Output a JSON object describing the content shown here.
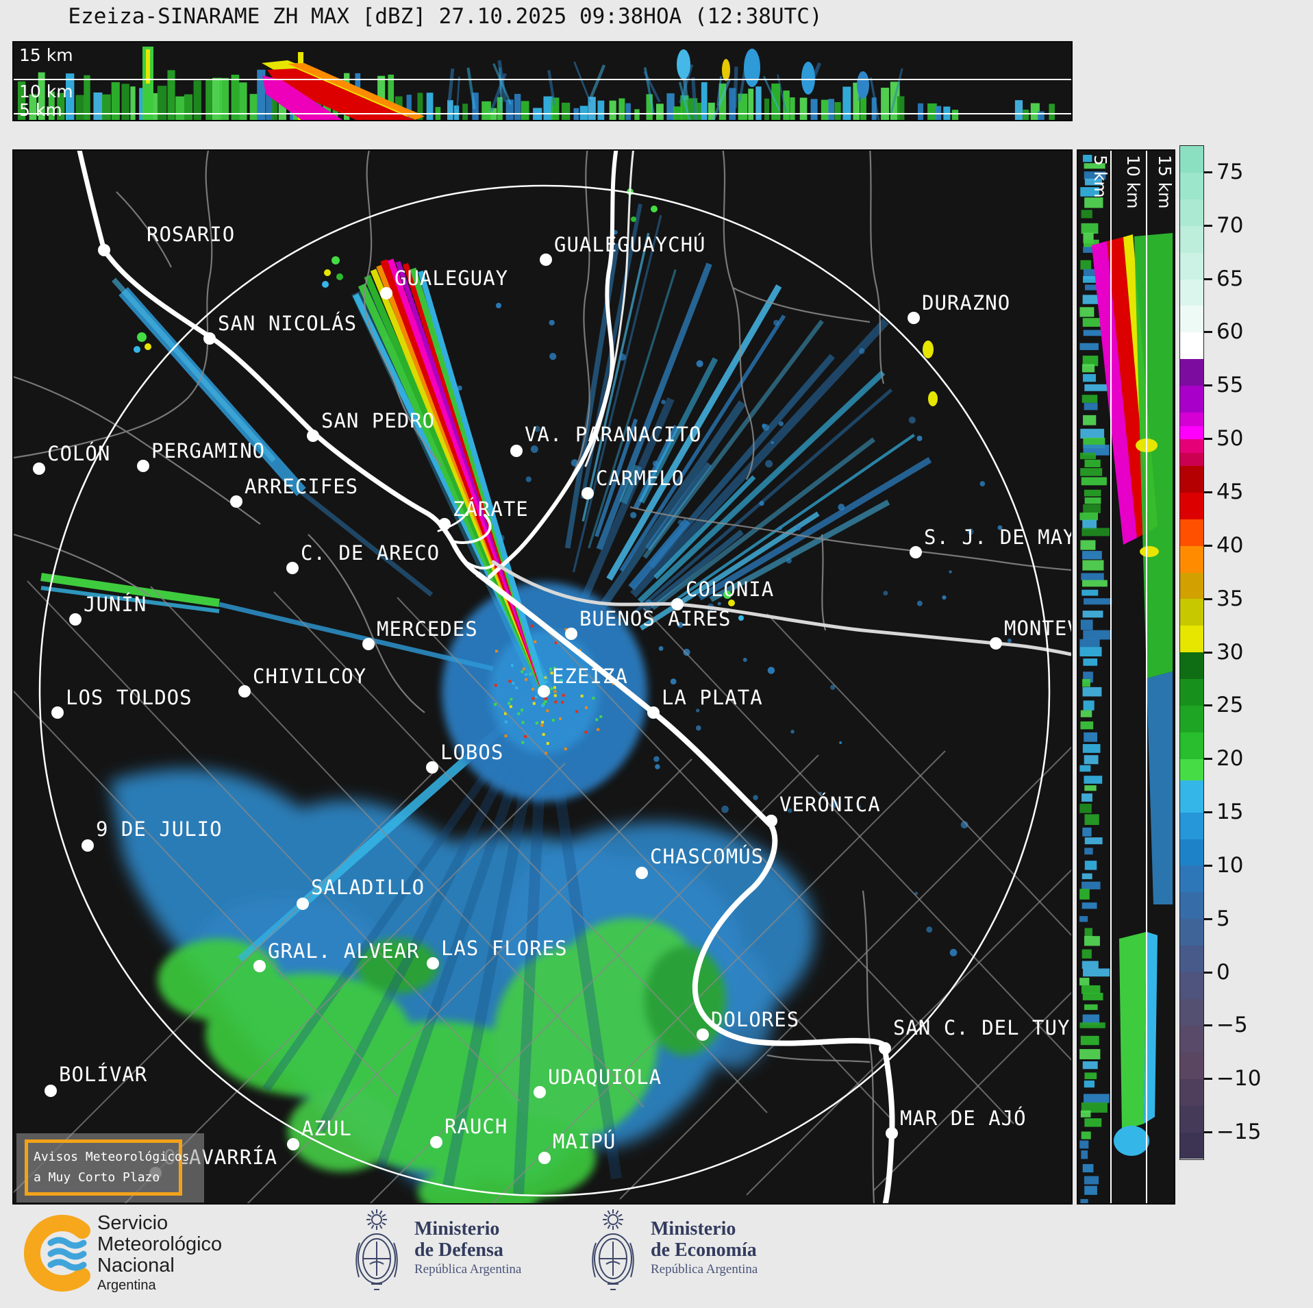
{
  "title": "Ezeiza-SINARAME ZH MAX [dBZ] 27.10.2025 09:38HOA (12:38UTC)",
  "top_panel": {
    "height_labels": [
      "15 km",
      "10 km",
      "5 km"
    ]
  },
  "right_panel": {
    "height_labels": [
      "5 km",
      "10 km",
      "15 km"
    ]
  },
  "colorbar": {
    "unit": "dBZ",
    "top_value": 77.5,
    "bottom_value": -17.5,
    "ticks": [
      75,
      70,
      65,
      60,
      55,
      50,
      45,
      40,
      35,
      30,
      25,
      20,
      15,
      10,
      5,
      0,
      -5,
      -10,
      -15
    ],
    "stops": [
      {
        "v": 77.5,
        "c": "#8ce0c2"
      },
      {
        "v": 75,
        "c": "#9ce6cb"
      },
      {
        "v": 72.5,
        "c": "#ace9d2"
      },
      {
        "v": 70,
        "c": "#bceedb"
      },
      {
        "v": 67.5,
        "c": "#cbf2e4"
      },
      {
        "v": 65,
        "c": "#dbf6ec"
      },
      {
        "v": 62.5,
        "c": "#eefaf5"
      },
      {
        "v": 60,
        "c": "#ffffff"
      },
      {
        "v": 57.5,
        "c": "#7c0ca0"
      },
      {
        "v": 55,
        "c": "#a800c8"
      },
      {
        "v": 52.5,
        "c": "#d400d4"
      },
      {
        "v": 51.2,
        "c": "#ff00ff"
      },
      {
        "v": 50,
        "c": "#e60078"
      },
      {
        "v": 48.7,
        "c": "#cc0050"
      },
      {
        "v": 47.5,
        "c": "#b40000"
      },
      {
        "v": 45,
        "c": "#dc0000"
      },
      {
        "v": 42.5,
        "c": "#ff5000"
      },
      {
        "v": 40,
        "c": "#ff8c00"
      },
      {
        "v": 37.5,
        "c": "#d2a000"
      },
      {
        "v": 35,
        "c": "#c8c800"
      },
      {
        "v": 32.5,
        "c": "#e6e600"
      },
      {
        "v": 30,
        "c": "#0f6e14"
      },
      {
        "v": 27.5,
        "c": "#17911c"
      },
      {
        "v": 25,
        "c": "#1fa524"
      },
      {
        "v": 22.5,
        "c": "#28be2d"
      },
      {
        "v": 20,
        "c": "#46dc46"
      },
      {
        "v": 18,
        "c": "#35b6e8"
      },
      {
        "v": 15,
        "c": "#2697d8"
      },
      {
        "v": 12.5,
        "c": "#1e82c8"
      },
      {
        "v": 10,
        "c": "#2d77b8"
      },
      {
        "v": 7.5,
        "c": "#366ca8"
      },
      {
        "v": 5,
        "c": "#3f6498"
      },
      {
        "v": 2.5,
        "c": "#475a8a"
      },
      {
        "v": 0,
        "c": "#4e547e"
      },
      {
        "v": -2.5,
        "c": "#545072"
      },
      {
        "v": -5,
        "c": "#584a68"
      },
      {
        "v": -7.5,
        "c": "#5a4660"
      },
      {
        "v": -10,
        "c": "#4f3f5c"
      },
      {
        "v": -12.5,
        "c": "#453a58"
      },
      {
        "v": -15,
        "c": "#3c3452",
        "end": -17.5
      }
    ]
  },
  "map": {
    "radar_site": "EZEIZA",
    "cities": [
      {
        "name": "ROSARIO",
        "dot": [
          150,
          363
        ],
        "label": [
          212,
          340
        ]
      },
      {
        "name": "GUALEGUAYCHÚ",
        "dot": [
          795,
          377
        ],
        "label": [
          807,
          355
        ]
      },
      {
        "name": "GUALEGUAY",
        "dot": [
          562,
          426
        ],
        "label": [
          574,
          404
        ]
      },
      {
        "name": "SAN NICOLÁS",
        "dot": [
          304,
          492
        ],
        "label": [
          316,
          470
        ]
      },
      {
        "name": "DURAZNO",
        "dot": [
          1332,
          462
        ],
        "label": [
          1344,
          440
        ]
      },
      {
        "name": "SAN PEDRO",
        "dot": [
          455,
          634
        ],
        "label": [
          467,
          612
        ]
      },
      {
        "name": "VA. PARANACITO",
        "dot": [
          752,
          656
        ],
        "label": [
          764,
          632
        ]
      },
      {
        "name": "COLÓN",
        "dot": [
          55,
          682
        ],
        "label": [
          67,
          660
        ]
      },
      {
        "name": "PERGAMINO",
        "dot": [
          207,
          678
        ],
        "label": [
          219,
          656
        ]
      },
      {
        "name": "ARRECIFES",
        "dot": [
          343,
          730
        ],
        "label": [
          355,
          708
        ]
      },
      {
        "name": "ZÁRATE",
        "dot": [
          647,
          763
        ],
        "label": [
          659,
          741
        ]
      },
      {
        "name": "CARMELO",
        "dot": [
          856,
          718
        ],
        "label": [
          868,
          696
        ]
      },
      {
        "name": "C. DE ARECO",
        "dot": [
          425,
          827
        ],
        "label": [
          437,
          805
        ]
      },
      {
        "name": "COLONIA",
        "dot": [
          987,
          880
        ],
        "label": [
          999,
          858
        ]
      },
      {
        "name": "S. J. DE MAYO",
        "dot": [
          1335,
          804
        ],
        "label": [
          1347,
          782
        ]
      },
      {
        "name": "JUNÍN",
        "dot": [
          108,
          902
        ],
        "label": [
          120,
          880
        ]
      },
      {
        "name": "MERCEDES",
        "dot": [
          536,
          938
        ],
        "label": [
          548,
          916
        ]
      },
      {
        "name": "BUENOS AIRES",
        "dot": [
          832,
          923
        ],
        "label": [
          844,
          901
        ]
      },
      {
        "name": "EZEIZA",
        "dot": [
          792,
          1007
        ],
        "label": [
          804,
          985
        ]
      },
      {
        "name": "CHIVILCOY",
        "dot": [
          355,
          1007
        ],
        "label": [
          367,
          985
        ]
      },
      {
        "name": "LA PLATA",
        "dot": [
          952,
          1038
        ],
        "label": [
          964,
          1016
        ]
      },
      {
        "name": "MONTEVIDEO",
        "dot": [
          1452,
          937
        ],
        "label": [
          1464,
          915
        ]
      },
      {
        "name": "LOS TOLDOS",
        "dot": [
          82,
          1038
        ],
        "label": [
          94,
          1016
        ]
      },
      {
        "name": "LOBOS",
        "dot": [
          629,
          1118
        ],
        "label": [
          641,
          1096
        ]
      },
      {
        "name": "9 DE JULIO",
        "dot": [
          126,
          1232
        ],
        "label": [
          138,
          1208
        ]
      },
      {
        "name": "VERÓNICA",
        "dot": [
          1124,
          1196
        ],
        "label": [
          1136,
          1172
        ]
      },
      {
        "name": "CHASCOMÚS",
        "dot": [
          935,
          1272
        ],
        "label": [
          947,
          1248
        ]
      },
      {
        "name": "SALADILLO",
        "dot": [
          440,
          1317
        ],
        "label": [
          452,
          1293
        ]
      },
      {
        "name": "GRAL. ALVEAR",
        "dot": [
          377,
          1408
        ],
        "label": [
          389,
          1386
        ]
      },
      {
        "name": "LAS FLORES",
        "dot": [
          630,
          1404
        ],
        "label": [
          642,
          1382
        ]
      },
      {
        "name": "BOLÍVAR",
        "dot": [
          72,
          1590
        ],
        "label": [
          84,
          1566
        ]
      },
      {
        "name": "DOLORES",
        "dot": [
          1024,
          1508
        ],
        "label": [
          1036,
          1486
        ]
      },
      {
        "name": "SAN C. DEL TUYÚ",
        "dot": [
          1290,
          1528
        ],
        "label": [
          1302,
          1498
        ]
      },
      {
        "name": "UDAQUIOLA",
        "dot": [
          786,
          1592
        ],
        "label": [
          798,
          1570
        ]
      },
      {
        "name": "MAR DE AJÓ",
        "dot": [
          1300,
          1652
        ],
        "label": [
          1312,
          1630
        ]
      },
      {
        "name": "OLAVARRÍA",
        "dot": [
          225,
          1710
        ],
        "label": [
          237,
          1687
        ]
      },
      {
        "name": "AZUL",
        "dot": [
          426,
          1668
        ],
        "label": [
          438,
          1645
        ]
      },
      {
        "name": "RAUCH",
        "dot": [
          635,
          1665
        ],
        "label": [
          647,
          1642
        ]
      },
      {
        "name": "MAIPÚ",
        "dot": [
          793,
          1688
        ],
        "label": [
          805,
          1664
        ]
      }
    ]
  },
  "warning_box": {
    "line1": "Avisos Meteorológicos",
    "line2": "a Muy Corto Plazo",
    "border_color": "#f2a21a"
  },
  "footer": {
    "smn": {
      "l1": "Servicio",
      "l2": "Meteorológico",
      "l3": "Nacional",
      "l4": "Argentina",
      "logo": "smn-logo",
      "logo_colors": {
        "orange": "#f6a71c",
        "blue": "#3fa4da"
      }
    },
    "defensa": {
      "l1": "Ministerio",
      "l2": "de Defensa",
      "l3": "República Argentina",
      "logo": "coat-of-arms-icon"
    },
    "economia": {
      "l1": "Ministerio",
      "l2": "de Economía",
      "l3": "República Argentina",
      "logo": "coat-of-arms-icon"
    }
  }
}
